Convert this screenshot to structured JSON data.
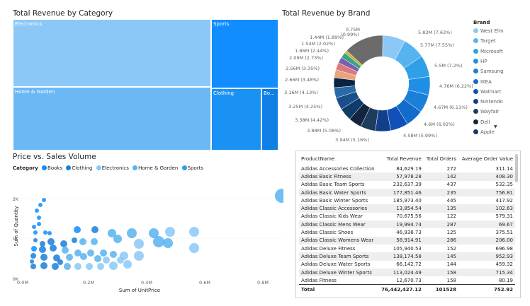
{
  "treemap": {
    "title": "Total Revenue by Category",
    "tiles": [
      {
        "label": "Electronics",
        "color": "#8cc8f7"
      },
      {
        "label": "Sports",
        "color": "#118dff"
      },
      {
        "label": "Home & Garden",
        "color": "#6cb8f5"
      },
      {
        "label": "Clothing",
        "color": "#1a92f3"
      },
      {
        "label": "Bo...",
        "color": "#0f7fe6"
      }
    ]
  },
  "donut": {
    "title": "Total Revenue by Brand",
    "legend_title": "Brand",
    "legend": [
      {
        "name": "West Elm",
        "color": "#8cc8f7"
      },
      {
        "name": "Target",
        "color": "#57b3f0"
      },
      {
        "name": "Microsoft",
        "color": "#2f9fe7"
      },
      {
        "name": "HP",
        "color": "#1f8ee6"
      },
      {
        "name": "Samsung",
        "color": "#1a7fd9"
      },
      {
        "name": "IKEA",
        "color": "#126ccb"
      },
      {
        "name": "Walmart",
        "color": "#1050b8"
      },
      {
        "name": "Nintendo",
        "color": "#123f8c"
      },
      {
        "name": "Wayfair",
        "color": "#1f3b5e"
      },
      {
        "name": "Dell",
        "color": "#12243e"
      },
      {
        "name": "Apple",
        "color": "#0f3b6b"
      }
    ],
    "labels": [
      "5.83M (7.63%)",
      "5.77M (7.55%)",
      "5.5M (7.2%)",
      "4.76M (6.22%)",
      "4.67M (6.11%)",
      "4.6M (6.02%)",
      "4.58M (5.99%)",
      "3.94M (5.16%)",
      "3.88M (5.08%)",
      "3.38M (4.42%)",
      "3.25M (4.25%)",
      "3.16M (4.13%)",
      "2.66M (3.48%)",
      "2.56M (3.35%)",
      "2.09M (2.73%)",
      "1.86M (2.44%)",
      "1.54M (2.02%)",
      "1.44M (1.89%)",
      "0.75M",
      "(0.99%)"
    ]
  },
  "scatter": {
    "title": "Price vs. Sales Volume",
    "legend_title": "Category",
    "legend": [
      {
        "name": "Books",
        "color": "#118dff"
      },
      {
        "name": "Clothing",
        "color": "#1a7fd9"
      },
      {
        "name": "Electronics",
        "color": "#8cc8f7"
      },
      {
        "name": "Home & Garden",
        "color": "#57b3f0"
      },
      {
        "name": "Sports",
        "color": "#2f9fe7"
      }
    ],
    "ylabel": "Sum of Quantity",
    "xlabel": "Sum of UnitPrice",
    "yticks": [
      "2K",
      "1K",
      "0K"
    ],
    "xticks": [
      "0.0M",
      "0.2M",
      "0.4M",
      "0.6M",
      "0.8M"
    ]
  },
  "table": {
    "columns": [
      "ProductName",
      "Total Revenue",
      "Total Orders",
      "Average Order Value"
    ],
    "rows": [
      [
        "Adidas Accessories Collection",
        "84,629.19",
        "272",
        "311.14"
      ],
      [
        "Adidas Basic Fitness",
        "57,978.28",
        "142",
        "408.30"
      ],
      [
        "Adidas Basic Team Sports",
        "232,637.39",
        "437",
        "532.35"
      ],
      [
        "Adidas Basic Water Sports",
        "177,851.46",
        "235",
        "756.81"
      ],
      [
        "Adidas Basic Winter Sports",
        "185,973.40",
        "445",
        "417.92"
      ],
      [
        "Adidas Classic Accessories",
        "13,854.54",
        "135",
        "102.63"
      ],
      [
        "Adidas Classic Kids Wear",
        "70,675.56",
        "122",
        "579.31"
      ],
      [
        "Adidas Classic Mens Wear",
        "19,994.74",
        "287",
        "69.67"
      ],
      [
        "Adidas Classic Shoes",
        "46,938.73",
        "125",
        "375.51"
      ],
      [
        "Adidas Classic Womens Wear",
        "58,914.91",
        "286",
        "206.00"
      ],
      [
        "Adidas Deluxe Fitness",
        "105,940.53",
        "152",
        "696.98"
      ],
      [
        "Adidas Deluxe Team Sports",
        "138,174.58",
        "145",
        "952.93"
      ],
      [
        "Adidas Deluxe Water Sports",
        "66,142.72",
        "144",
        "459.32"
      ],
      [
        "Adidas Deluxe Winter Sports",
        "113,024.49",
        "158",
        "715.34"
      ],
      [
        "Adidas Fitness",
        "12,670.73",
        "158",
        "80.19"
      ]
    ],
    "total": [
      "Total",
      "76,442,427.12",
      "101528",
      "752.92"
    ]
  }
}
